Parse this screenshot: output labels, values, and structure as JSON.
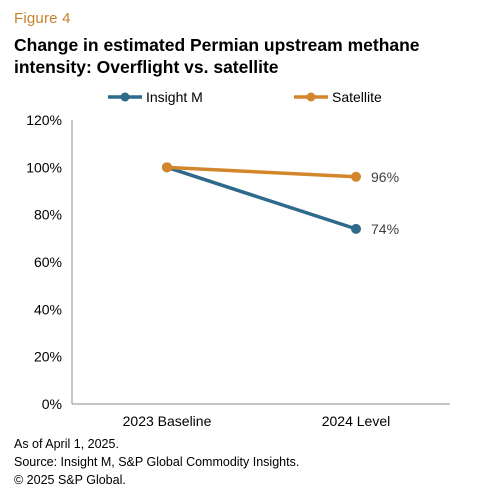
{
  "figure_label": "Figure 4",
  "title": "Change in estimated Permian upstream methane intensity: Overflight vs. satellite",
  "chart_data": {
    "type": "line",
    "categories": [
      "2023 Baseline",
      "2024 Level"
    ],
    "series": [
      {
        "name": "Insight M",
        "values": [
          100,
          74
        ],
        "color": "#2e6a8a",
        "end_label": "74%"
      },
      {
        "name": "Satellite",
        "values": [
          100,
          96
        ],
        "color": "#d3862b",
        "end_label": "96%"
      }
    ],
    "ylim": [
      0,
      120
    ],
    "yticks": [
      "0%",
      "20%",
      "40%",
      "60%",
      "80%",
      "100%",
      "120%"
    ],
    "ytick_values": [
      0,
      20,
      40,
      60,
      80,
      100,
      120
    ],
    "grid": false,
    "legend_position": "top"
  },
  "footnotes": [
    "As of April 1, 2025.",
    "Source: Insight M, S&P Global Commodity Insights.",
    "© 2025 S&P Global."
  ]
}
